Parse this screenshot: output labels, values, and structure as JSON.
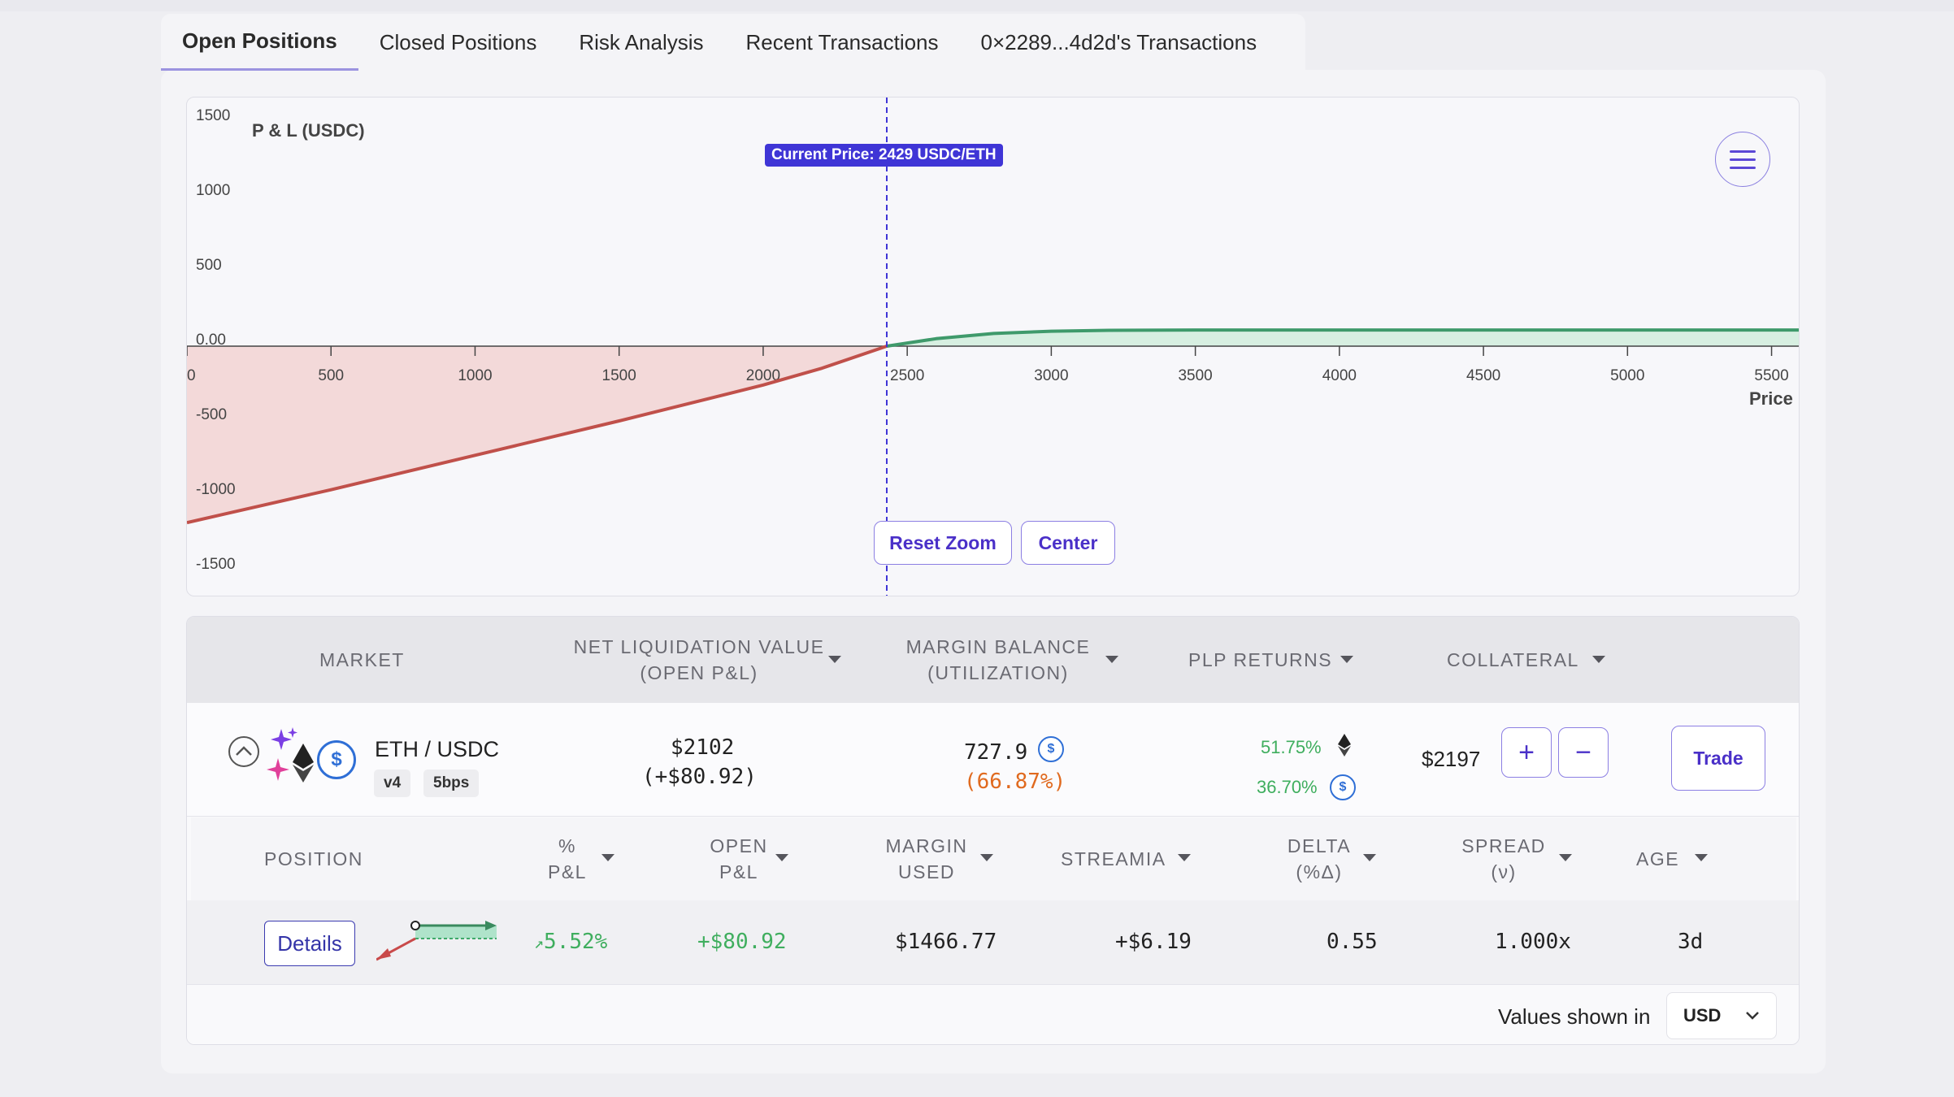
{
  "tabs": [
    "Open Positions",
    "Closed Positions",
    "Risk Analysis",
    "Recent Transactions",
    "0×2289...4d2d's Transactions"
  ],
  "chart_data": {
    "type": "line",
    "ylabel": "P & L (USDC)",
    "xlabel": "Price",
    "x_ticks": [
      "00",
      "500",
      "1000",
      "1500",
      "2000",
      "2500",
      "3000",
      "3500",
      "4000",
      "4500",
      "5000",
      "5500"
    ],
    "y_ticks": [
      "1500",
      "1000",
      "500",
      "0.00",
      "-500",
      "-1000",
      "-1500"
    ],
    "xlim": [
      0,
      5600
    ],
    "ylim": [
      -1500,
      1500
    ],
    "current_price_label": "Current Price: 2429 USDC/ETH",
    "current_price": 2429,
    "series": [
      {
        "color": "#c0504a",
        "x": [
          0,
          500,
          1000,
          1500,
          2000,
          2200,
          2429
        ],
        "y": [
          -1180,
          -960,
          -730,
          -500,
          -260,
          -150,
          0
        ]
      },
      {
        "color": "#3f9a6b",
        "x": [
          2429,
          2600,
          2800,
          3000,
          3200,
          3500,
          4000,
          5000,
          5600
        ],
        "y": [
          0,
          50,
          85,
          100,
          106,
          108,
          108,
          108,
          108
        ]
      }
    ],
    "buttons": [
      "Reset Zoom",
      "Center"
    ]
  },
  "table": {
    "headers": {
      "market": "MARKET",
      "nlv_1": "NET LIQUIDATION VALUE",
      "nlv_2": "(OPEN P&L)",
      "margin_1": "MARGIN BALANCE",
      "margin_2": "(UTILIZATION)",
      "plp": "PLP RETURNS",
      "collateral": "COLLATERAL"
    },
    "market_row": {
      "pair": "ETH / USDC",
      "version": "v4",
      "fee": "5bps",
      "nlv": "$2102",
      "open_pnl": "(+$80.92)",
      "margin_balance": "727.9",
      "utilization": "(66.87%)",
      "plp_eth": "51.75%",
      "plp_usdc": "36.70%",
      "collateral": "$2197",
      "plus": "+",
      "minus": "−",
      "trade": "Trade"
    },
    "position_headers": {
      "position": "POSITION",
      "pct_pnl_1": "%",
      "pct_pnl_2": "P&L",
      "open_pnl_1": "OPEN",
      "open_pnl_2": "P&L",
      "margin_used_1": "MARGIN",
      "margin_used_2": "USED",
      "streamia": "STREAMIA",
      "delta_1": "DELTA",
      "delta_2": "(%Δ)",
      "spread_1": "SPREAD",
      "spread_2": "(ν)",
      "age": "AGE"
    },
    "position_row": {
      "details": "Details",
      "pct_pnl": "5.52%",
      "open_pnl": "+$80.92",
      "margin_used": "$1466.77",
      "streamia": "+$6.19",
      "delta": "0.55",
      "spread": "1.000x",
      "age": "3d"
    },
    "footer": {
      "values_shown_in": "Values shown in",
      "currency": "USD"
    }
  }
}
